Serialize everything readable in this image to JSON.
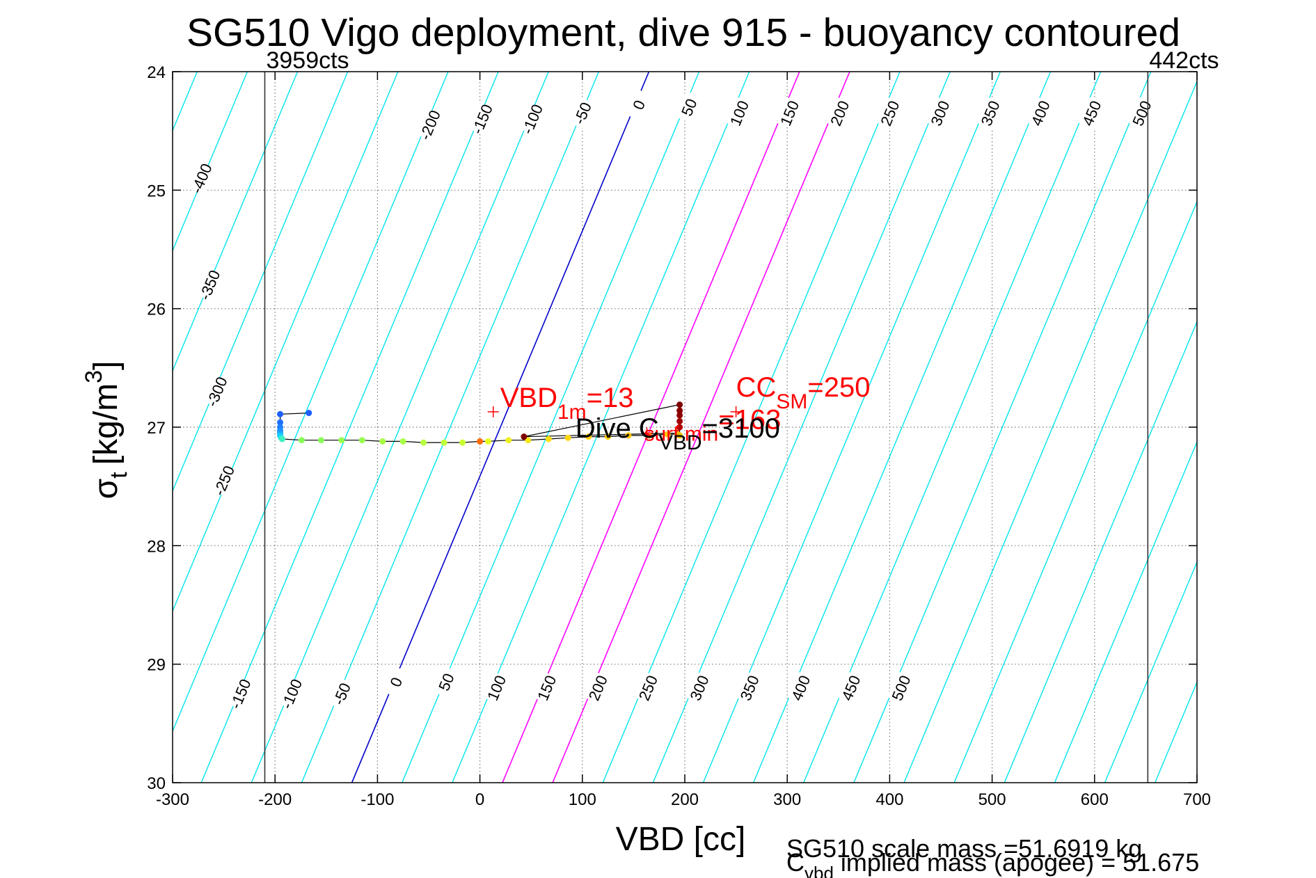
{
  "chart_data": {
    "type": "scatter",
    "title": "SG510 Vigo deployment, dive 915 - buoyancy contoured",
    "xlabel": "VBD [cc]",
    "ylabel": "σt [kg/m3]",
    "ylabel_parts": {
      "sigma": "σ",
      "sub": "t",
      "unit_open": "[kg/m",
      "sup": "3",
      "unit_close": "]"
    },
    "xlim": [
      -300,
      700
    ],
    "ylim": [
      24,
      30
    ],
    "y_reversed": true,
    "grid": true,
    "x_ticks": [
      -300,
      -200,
      -100,
      0,
      100,
      200,
      300,
      400,
      500,
      600,
      700
    ],
    "y_ticks": [
      24,
      25,
      26,
      27,
      28,
      29,
      30
    ],
    "x_tick_labels": [
      "-300",
      "-200",
      "-100",
      "0",
      "100",
      "200",
      "300",
      "400",
      "500",
      "600",
      "700"
    ],
    "y_tick_labels": [
      "24",
      "25",
      "26",
      "27",
      "28",
      "29",
      "30"
    ],
    "vbd_limits": [
      {
        "x": -210,
        "label": "3959cts"
      },
      {
        "x": 652,
        "label": "442cts"
      }
    ],
    "contours": {
      "levels": [
        -500,
        -450,
        -400,
        -350,
        -300,
        -250,
        -200,
        -150,
        -100,
        -50,
        0,
        50,
        100,
        150,
        200,
        250,
        300,
        350,
        400,
        450,
        500,
        550,
        600,
        650,
        700,
        750,
        800
      ],
      "zero_x_top": 165,
      "zero_x_bottom": -125,
      "spacing_x": 49,
      "highlight": [
        {
          "level": 0,
          "color": "#0000cc"
        },
        {
          "level": 150,
          "color": "#ff00ff"
        },
        {
          "level": 200,
          "color": "#ff00ff"
        }
      ],
      "base_color": "#00e5ee",
      "top_labels": [
        {
          "level": -400,
          "x": -272,
          "y": 24.9
        },
        {
          "level": -350,
          "x": -264,
          "y": 25.8
        },
        {
          "level": -300,
          "x": -257,
          "y": 26.7
        },
        {
          "level": -250,
          "x": -250,
          "y": 27.45
        },
        {
          "level": -200,
          "x": -49,
          "y": 24.45
        },
        {
          "level": -150,
          "x": 2,
          "y": 24.4
        },
        {
          "level": -100,
          "x": 51,
          "y": 24.4
        },
        {
          "level": -50,
          "x": 100,
          "y": 24.35
        },
        {
          "level": 0,
          "x": 155,
          "y": 24.28
        },
        {
          "level": 50,
          "x": 204,
          "y": 24.3
        },
        {
          "level": 100,
          "x": 253,
          "y": 24.35
        },
        {
          "level": 150,
          "x": 302,
          "y": 24.35
        },
        {
          "level": 200,
          "x": 351,
          "y": 24.35
        },
        {
          "level": 250,
          "x": 400,
          "y": 24.35
        },
        {
          "level": 300,
          "x": 449,
          "y": 24.35
        },
        {
          "level": 350,
          "x": 498,
          "y": 24.35
        },
        {
          "level": 400,
          "x": 547,
          "y": 24.35
        },
        {
          "level": 450,
          "x": 597,
          "y": 24.35
        },
        {
          "level": 500,
          "x": 646,
          "y": 24.35
        }
      ],
      "bottom_labels": [
        {
          "level": -150,
          "x": -234,
          "y": 29.25
        },
        {
          "level": -100,
          "x": -184,
          "y": 29.25
        },
        {
          "level": -50,
          "x": -135,
          "y": 29.25
        },
        {
          "level": 0,
          "x": -82,
          "y": 29.15
        },
        {
          "level": 50,
          "x": -33,
          "y": 29.15
        },
        {
          "level": 100,
          "x": 16,
          "y": 29.2
        },
        {
          "level": 150,
          "x": 65,
          "y": 29.2
        },
        {
          "level": 200,
          "x": 115,
          "y": 29.2
        },
        {
          "level": 250,
          "x": 164,
          "y": 29.2
        },
        {
          "level": 300,
          "x": 214,
          "y": 29.2
        },
        {
          "level": 350,
          "x": 263,
          "y": 29.2
        },
        {
          "level": 400,
          "x": 313,
          "y": 29.2
        },
        {
          "level": 450,
          "x": 362,
          "y": 29.2
        },
        {
          "level": 500,
          "x": 411,
          "y": 29.2
        }
      ]
    },
    "series": [
      {
        "name": "",
        "role": "dive points",
        "points": [
          {
            "x": -167,
            "y": 26.88,
            "c": "#1f5fff"
          },
          {
            "x": -195,
            "y": 26.89,
            "c": "#1f5fff"
          },
          {
            "x": -195,
            "y": 26.96,
            "c": "#1f6fff"
          },
          {
            "x": -195,
            "y": 27.0,
            "c": "#1f7fff"
          },
          {
            "x": -195,
            "y": 27.03,
            "c": "#1f8fff"
          },
          {
            "x": -195,
            "y": 27.05,
            "c": "#1fa0ff"
          },
          {
            "x": -195,
            "y": 27.07,
            "c": "#10c8ff"
          },
          {
            "x": -194,
            "y": 27.09,
            "c": "#22e0f0"
          },
          {
            "x": -193,
            "y": 27.1,
            "c": "#40f0c0"
          },
          {
            "x": -174,
            "y": 27.11,
            "c": "#8aff5a"
          },
          {
            "x": -155,
            "y": 27.11,
            "c": "#8aff5a"
          },
          {
            "x": -135,
            "y": 27.11,
            "c": "#98ff50"
          },
          {
            "x": -115,
            "y": 27.11,
            "c": "#98ff50"
          },
          {
            "x": -95,
            "y": 27.12,
            "c": "#a8ff45"
          },
          {
            "x": -75,
            "y": 27.12,
            "c": "#a8ff45"
          },
          {
            "x": -55,
            "y": 27.13,
            "c": "#b8ff40"
          },
          {
            "x": -35,
            "y": 27.13,
            "c": "#c0ff38"
          },
          {
            "x": -17,
            "y": 27.13,
            "c": "#c8ff30"
          },
          {
            "x": 0,
            "y": 27.12,
            "c": "#ff6a00"
          },
          {
            "x": 8,
            "y": 27.12,
            "c": "#e8ff20"
          },
          {
            "x": 28,
            "y": 27.11,
            "c": "#f0f020"
          },
          {
            "x": 47,
            "y": 27.11,
            "c": "#f8e818"
          },
          {
            "x": 67,
            "y": 27.1,
            "c": "#ffe010"
          },
          {
            "x": 86,
            "y": 27.09,
            "c": "#ffd810"
          },
          {
            "x": 106,
            "y": 27.08,
            "c": "#ffd000"
          },
          {
            "x": 125,
            "y": 27.08,
            "c": "#ffcc00"
          },
          {
            "x": 145,
            "y": 27.07,
            "c": "#ffc800"
          },
          {
            "x": 165,
            "y": 27.07,
            "c": "#ffc800"
          },
          {
            "x": 183,
            "y": 27.06,
            "c": "#ffc400"
          },
          {
            "x": 193,
            "y": 27.06,
            "c": "#ffc000"
          },
          {
            "x": 195,
            "y": 27.07,
            "c": "#e8c000"
          },
          {
            "x": 195,
            "y": 27.0,
            "c": "#b00000"
          },
          {
            "x": 195,
            "y": 26.95,
            "c": "#a00000"
          },
          {
            "x": 195,
            "y": 26.9,
            "c": "#900000"
          },
          {
            "x": 195,
            "y": 26.86,
            "c": "#880000"
          },
          {
            "x": 195,
            "y": 26.81,
            "c": "#800000"
          },
          {
            "x": 43,
            "y": 27.08,
            "c": "#800000"
          }
        ]
      }
    ],
    "annotations": [
      {
        "id": "vbd_1m",
        "main": "VBD",
        "sub": "1m",
        "value": "=13",
        "x": 13,
        "y": 26.87,
        "color": "#ff0000"
      },
      {
        "id": "cc_sm",
        "main": "CC",
        "sub": "SM",
        "value": "=250",
        "x": 250,
        "y": 26.87,
        "color": "#ff0000"
      },
      {
        "id": "surf_min",
        "main": "",
        "sub": "surf min",
        "value": "=163",
        "x": 163,
        "y": 27.05,
        "color": "#ff0000"
      },
      {
        "id": "dive_c_vbd",
        "main": "Dive C",
        "sub": "VBD",
        "value": "=3100",
        "x": 100,
        "y": 27.0,
        "color": "#000000"
      }
    ],
    "footer": {
      "scale_mass": "SG510 scale mass =51.6919 kg",
      "implied_main": "C",
      "implied_sub": "vbd",
      "implied_rest": " implied mass (apogee) = 51.675"
    }
  }
}
